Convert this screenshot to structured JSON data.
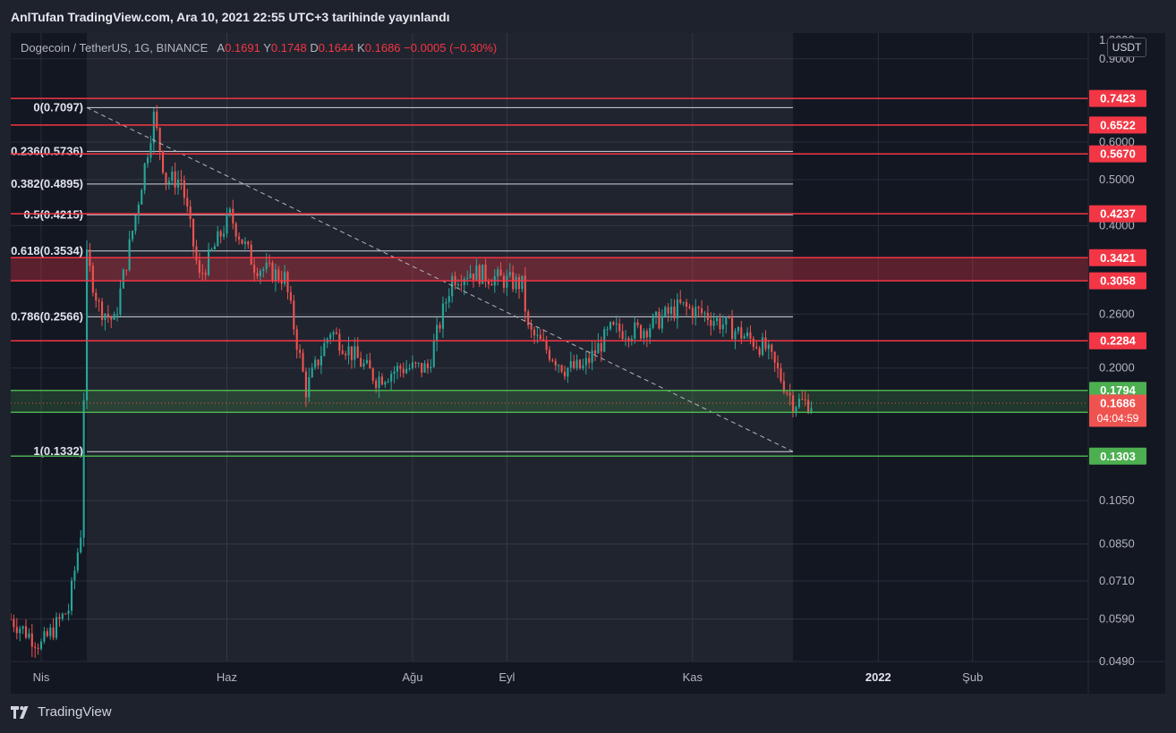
{
  "header": {
    "publish_text": "AnlTufan TradingView.com, Ara 10, 2021 22:55 UTC+3 tarihinde yayınlandı"
  },
  "legend": {
    "symbol": "Dogecoin / TetherUS, 1G, BINANCE",
    "open_label": "A",
    "open_value": "0.1691",
    "high_label": "Y",
    "high_value": "0.1748",
    "low_label": "D",
    "low_value": "0.1644",
    "close_label": "K",
    "close_value": "0.1686",
    "change": "−0.0005 (−0.30%)"
  },
  "axis": {
    "unit": "USDT",
    "top_partial_label": "1.0000",
    "bottom_partial_label": "0.0490"
  },
  "footer": {
    "brand": "TradingView"
  },
  "colors": {
    "background": "#131722",
    "up": "#26a69a",
    "down": "#ef5350",
    "resistance": "#f23645",
    "support": "#4caf50",
    "fib": "#d1d4dc"
  },
  "chart_data": {
    "type": "candlestick",
    "symbol": "DOGE/USDT",
    "interval": "1D",
    "y_scale": "log",
    "ylim": [
      0.048,
      1.02
    ],
    "grid": true,
    "y_ticks": [
      0.9,
      0.6,
      0.5,
      0.4,
      0.26,
      0.2,
      0.105,
      0.085,
      0.071,
      0.059
    ],
    "x_ticks": [
      {
        "label": "Nis",
        "date": "2021-04-01"
      },
      {
        "label": "Haz",
        "date": "2021-06-01"
      },
      {
        "label": "Ağu",
        "date": "2021-08-01"
      },
      {
        "label": "Eyl",
        "date": "2021-09-01"
      },
      {
        "label": "Kas",
        "date": "2021-11-01"
      },
      {
        "label": "2022",
        "date": "2022-01-01"
      },
      {
        "label": "Şub",
        "date": "2022-02-01"
      }
    ],
    "x_range": [
      "2021-03-22",
      "2022-03-11"
    ],
    "ohlc_keyframes": [
      {
        "date": "2021-03-22",
        "close": 0.059
      },
      {
        "date": "2021-04-01",
        "close": 0.052
      },
      {
        "date": "2021-04-10",
        "close": 0.062
      },
      {
        "date": "2021-04-14",
        "close": 0.09
      },
      {
        "date": "2021-04-16",
        "close": 0.34
      },
      {
        "date": "2021-04-20",
        "close": 0.27
      },
      {
        "date": "2021-04-25",
        "close": 0.25
      },
      {
        "date": "2021-05-02",
        "close": 0.42
      },
      {
        "date": "2021-05-08",
        "close": 0.68
      },
      {
        "date": "2021-05-12",
        "close": 0.5
      },
      {
        "date": "2021-05-17",
        "close": 0.5
      },
      {
        "date": "2021-05-23",
        "close": 0.31
      },
      {
        "date": "2021-06-02",
        "close": 0.42
      },
      {
        "date": "2021-06-10",
        "close": 0.33
      },
      {
        "date": "2021-06-20",
        "close": 0.31
      },
      {
        "date": "2021-06-27",
        "close": 0.18
      },
      {
        "date": "2021-07-05",
        "close": 0.24
      },
      {
        "date": "2021-07-20",
        "close": 0.19
      },
      {
        "date": "2021-07-28",
        "close": 0.2
      },
      {
        "date": "2021-08-06",
        "close": 0.2
      },
      {
        "date": "2021-08-14",
        "close": 0.31
      },
      {
        "date": "2021-08-20",
        "close": 0.32
      },
      {
        "date": "2021-09-06",
        "close": 0.3
      },
      {
        "date": "2021-09-08",
        "close": 0.24
      },
      {
        "date": "2021-09-20",
        "close": 0.2
      },
      {
        "date": "2021-09-26",
        "close": 0.2
      },
      {
        "date": "2021-10-05",
        "close": 0.24
      },
      {
        "date": "2021-10-15",
        "close": 0.24
      },
      {
        "date": "2021-10-28",
        "close": 0.27
      },
      {
        "date": "2021-11-05",
        "close": 0.26
      },
      {
        "date": "2021-11-15",
        "close": 0.24
      },
      {
        "date": "2021-11-25",
        "close": 0.22
      },
      {
        "date": "2021-12-04",
        "close": 0.17
      },
      {
        "date": "2021-12-10",
        "close": 0.1686
      }
    ],
    "fibonacci": {
      "start_date": "2021-04-16",
      "end_date": "2021-12-04",
      "levels": [
        {
          "ratio": "0",
          "price": 0.7097,
          "label": "0(0.7097)"
        },
        {
          "ratio": "0.236",
          "price": 0.5736,
          "label": "0.236(0.5736)"
        },
        {
          "ratio": "0.382",
          "price": 0.4895,
          "label": "0.382(0.4895)"
        },
        {
          "ratio": "0.5",
          "price": 0.4215,
          "label": "0.5(0.4215)"
        },
        {
          "ratio": "0.618",
          "price": 0.3534,
          "label": "0.618(0.3534)"
        },
        {
          "ratio": "0.786",
          "price": 0.2566,
          "label": "0.786(0.2566)"
        },
        {
          "ratio": "1",
          "price": 0.1332,
          "label": "1(0.1332)"
        }
      ]
    },
    "resistance_levels": [
      {
        "price": 0.7423,
        "label": "0.7423"
      },
      {
        "price": 0.6522,
        "label": "0.6522"
      },
      {
        "price": 0.567,
        "label": "0.5670"
      },
      {
        "price": 0.4237,
        "label": "0.4237"
      },
      {
        "price": 0.3421,
        "label": "0.3421"
      },
      {
        "price": 0.3058,
        "label": "0.3058"
      },
      {
        "price": 0.2284,
        "label": "0.2284"
      }
    ],
    "resistance_zone": [
      0.3058,
      0.3421
    ],
    "support_levels": [
      {
        "price": 0.1794,
        "label": "0.1794"
      },
      {
        "price": 0.1613,
        "label": "0.1613"
      },
      {
        "price": 0.1303,
        "label": "0.1303"
      }
    ],
    "support_zone": [
      0.1613,
      0.1794
    ],
    "current_price": {
      "price": 0.1686,
      "label": "0.1686",
      "countdown": "04:04:59"
    },
    "trendline": {
      "from": {
        "date": "2021-04-16",
        "price": 0.7097
      },
      "to": {
        "date": "2021-12-04",
        "price": 0.1332
      }
    }
  }
}
